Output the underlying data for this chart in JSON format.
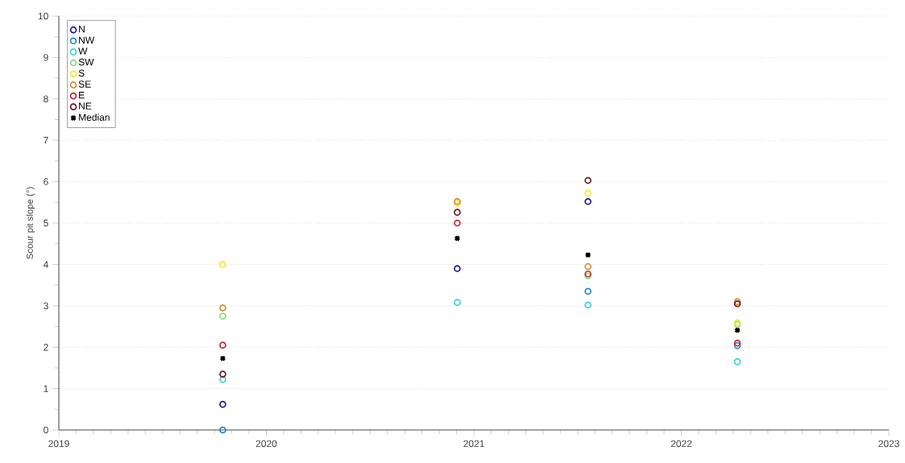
{
  "chart_data": {
    "type": "scatter",
    "ylabel": "Scour pit slope (°)",
    "x": [
      2019.79,
      2020.92,
      2021.55,
      2022.27
    ],
    "xlim": [
      2019,
      2023
    ],
    "xticks": [
      2019,
      2020,
      2021,
      2022,
      2023
    ],
    "ylim": [
      0,
      10
    ],
    "yticks": [
      0,
      1,
      2,
      3,
      4,
      5,
      6,
      7,
      8,
      9,
      10
    ],
    "grid": "y",
    "legend": "top left",
    "marker": "circle",
    "series": [
      {
        "name": "N",
        "color": "#1a1a9c",
        "values": [
          0.62,
          3.9,
          5.52,
          null
        ]
      },
      {
        "name": "NW",
        "color": "#2b86c0",
        "values": [
          0.0,
          null,
          3.35,
          2.04
        ]
      },
      {
        "name": "W",
        "color": "#33d4d8",
        "values": [
          1.22,
          3.08,
          3.02,
          1.65
        ]
      },
      {
        "name": "SW",
        "color": "#86dc86",
        "values": [
          2.75,
          null,
          3.72,
          2.55
        ]
      },
      {
        "name": "S",
        "color": "#f0ec28",
        "values": [
          4.0,
          5.48,
          5.72,
          2.59
        ]
      },
      {
        "name": "SE",
        "color": "#d98a30",
        "values": [
          2.95,
          5.52,
          3.95,
          3.1
        ]
      },
      {
        "name": "E",
        "color": "#c42a2e",
        "values": [
          2.05,
          5.0,
          3.77,
          2.1
        ]
      },
      {
        "name": "NE",
        "color": "#6e1c1e",
        "values": [
          1.35,
          5.26,
          6.03,
          3.05
        ]
      },
      {
        "name": "Median",
        "color": "#000000",
        "marker": "cross",
        "values": [
          1.73,
          4.63,
          4.23,
          2.41
        ]
      }
    ]
  }
}
